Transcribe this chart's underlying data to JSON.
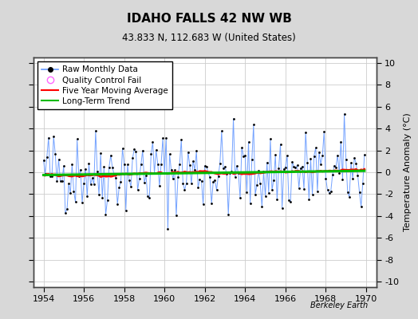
{
  "title": "IDAHO FALLS 42 NW WB",
  "subtitle": "43.833 N, 112.683 W (United States)",
  "ylabel": "Temperature Anomaly (°C)",
  "xlabel_years": [
    1954,
    1956,
    1958,
    1960,
    1962,
    1964,
    1966,
    1968,
    1970
  ],
  "yticks": [
    -10,
    -8,
    -6,
    -4,
    -2,
    0,
    2,
    4,
    6,
    8,
    10
  ],
  "xlim": [
    1953.5,
    1970.5
  ],
  "ylim": [
    -10.5,
    10.5
  ],
  "watermark": "Berkeley Earth",
  "bg_color": "#d8d8d8",
  "plot_bg_color": "#ffffff",
  "raw_line_color": "#6699ff",
  "raw_marker_color": "#000000",
  "qc_fail_color": "#ff66ff",
  "moving_avg_color": "#ff0000",
  "trend_color": "#00bb00",
  "seed": 17,
  "grid_color": "#cccccc"
}
